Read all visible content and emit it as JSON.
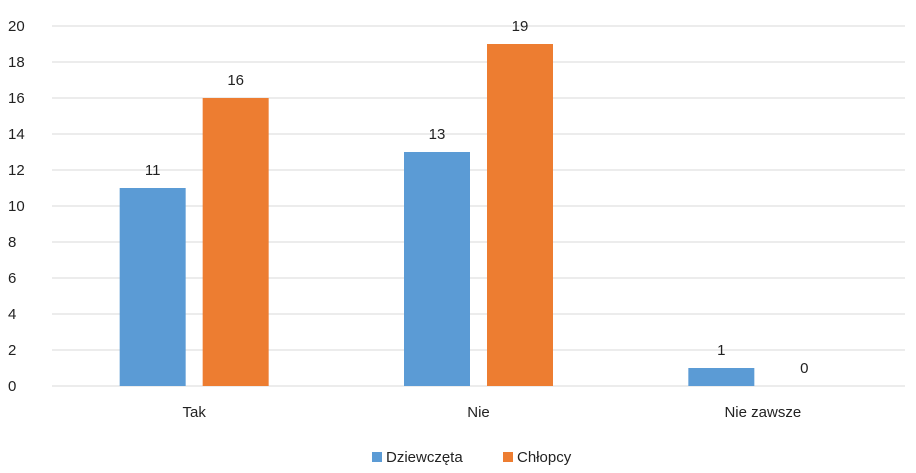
{
  "chart_data": {
    "type": "bar",
    "categories": [
      "Tak",
      "Nie",
      "Nie zawsze"
    ],
    "series": [
      {
        "name": "Dziewczęta",
        "values": [
          11,
          13,
          1
        ],
        "color": "#5B9BD5"
      },
      {
        "name": "Chłopcy",
        "values": [
          16,
          19,
          0
        ],
        "color": "#ED7D31"
      }
    ],
    "ylim": [
      0,
      20
    ],
    "yticks": [
      "0",
      "2",
      "4",
      "6",
      "8",
      "10",
      "12",
      "14",
      "16",
      "18",
      "20"
    ],
    "grid": true,
    "legend_position": "bottom",
    "data_labels": true
  }
}
